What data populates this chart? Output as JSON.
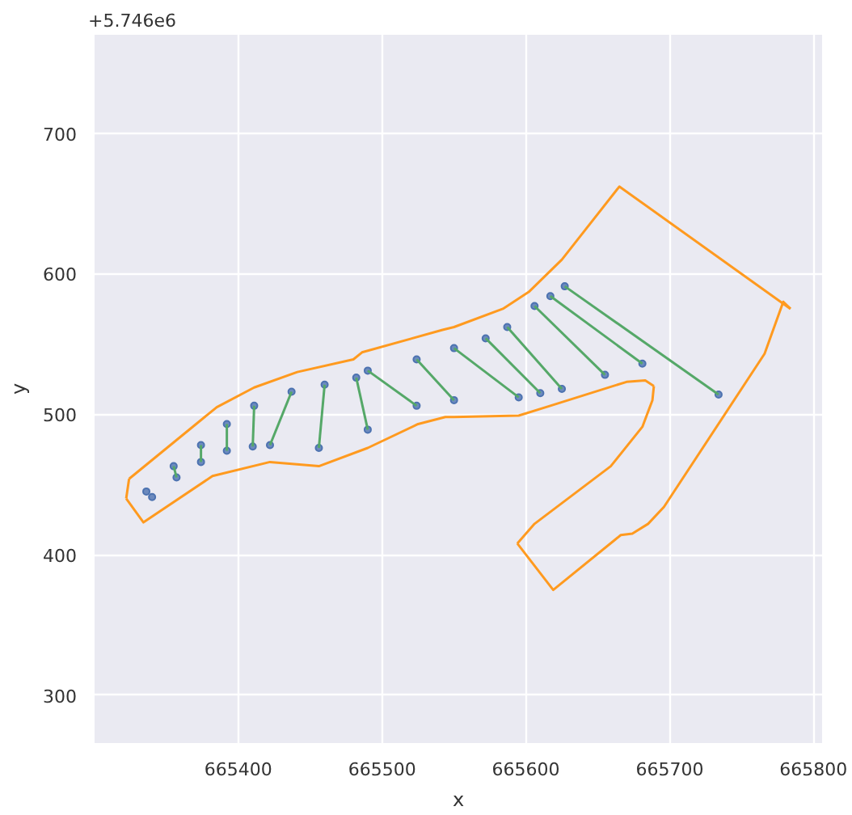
{
  "chart_data": {
    "type": "line",
    "xlabel": "x",
    "ylabel": "y",
    "annotations": [
      "+5.746e6"
    ],
    "xlim": [
      665300,
      665806
    ],
    "ylim": [
      266,
      770
    ],
    "xticks": [
      665400,
      665500,
      665600,
      665700,
      665800
    ],
    "yticks": [
      300,
      400,
      500,
      600,
      700
    ],
    "grid": true,
    "series": [
      {
        "color": "#55a868",
        "x": [
          665355,
          665357,
          null,
          665374,
          665374,
          null,
          665392,
          665392,
          null,
          665411,
          665410,
          null,
          665437,
          665422,
          null,
          665460,
          665456,
          null,
          665482,
          665490,
          null,
          665490,
          665524,
          null,
          665524,
          665550,
          null,
          665550,
          665595,
          null,
          665572,
          665610,
          null,
          665587,
          665625,
          null,
          665606,
          665655,
          null,
          665617,
          665681
        ],
        "values": [
          463,
          455,
          null,
          478,
          466,
          null,
          493,
          474,
          null,
          506,
          477,
          null,
          516,
          478,
          null,
          521,
          476,
          null,
          526,
          489,
          null,
          531,
          506,
          null,
          539,
          510,
          null,
          547,
          512,
          null,
          554,
          515,
          null,
          562,
          518,
          null,
          577,
          528,
          null,
          584,
          536
        ]
      },
      {
        "color": "#55a868",
        "x": [
          665627,
          665734
        ],
        "values": [
          591,
          514
        ]
      },
      {
        "type": "scatter",
        "marker": "circle",
        "color": "#4c72b0",
        "x": [
          665336,
          665355,
          665374,
          665392,
          665411,
          665437,
          665460,
          665482,
          665490,
          665524,
          665550,
          665572,
          665587,
          665606,
          665617
        ],
        "values": [
          445,
          463,
          478,
          493,
          506,
          516,
          521,
          526,
          531,
          539,
          547,
          554,
          562,
          577,
          584
        ]
      },
      {
        "type": "scatter",
        "marker": "circle",
        "color": "#4c72b0",
        "x": [
          665340,
          665357,
          665374,
          665392,
          665410,
          665422,
          665456,
          665490,
          665524,
          665550,
          665595,
          665610,
          665625,
          665655,
          665681
        ],
        "values": [
          441,
          455,
          466,
          474,
          477,
          478,
          476,
          489,
          506,
          510,
          512,
          515,
          518,
          528,
          536
        ]
      },
      {
        "type": "scatter",
        "marker": "circle",
        "color": "#4c72b0",
        "x": [
          665627,
          665734
        ],
        "values": [
          591,
          514
        ]
      },
      {
        "color": "#ff9a1f",
        "x": [
          665324,
          665322,
          null,
          665322,
          665334,
          665382,
          665422,
          665456,
          665490,
          665525,
          665544,
          665550,
          665595,
          665617,
          665670,
          665683,
          665689,
          null,
          665689,
          665688,
          665681,
          665659,
          665606,
          665594,
          null,
          665594,
          665619,
          665666,
          665674,
          665685,
          665696,
          665766,
          665779,
          665784,
          null,
          665784,
          665665,
          665625,
          665602,
          665584,
          665550,
          665542,
          665486,
          665480,
          665441,
          665411,
          665385,
          665324
        ],
        "values": [
          454,
          440,
          null,
          440,
          423,
          456,
          466,
          463,
          476,
          493,
          498,
          498,
          499,
          506,
          523,
          524,
          520,
          null,
          520,
          510,
          491,
          463,
          422,
          408,
          null,
          408,
          375,
          414,
          415,
          422,
          434,
          543,
          580,
          575,
          null,
          575,
          662,
          610,
          587,
          575,
          562,
          560,
          544,
          539,
          530,
          519,
          505,
          454
        ]
      }
    ]
  }
}
